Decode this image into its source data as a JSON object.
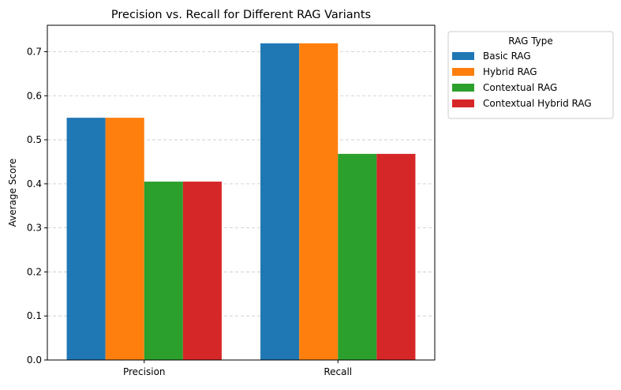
{
  "chart_data": {
    "type": "bar",
    "title": "Precision vs. Recall for Different RAG Variants",
    "xlabel": "",
    "ylabel": "Average Score",
    "categories": [
      "Precision",
      "Recall"
    ],
    "series": [
      {
        "name": "Basic RAG",
        "values": [
          0.55,
          0.719
        ],
        "color": "#1f77b4"
      },
      {
        "name": "Hybrid RAG",
        "values": [
          0.55,
          0.719
        ],
        "color": "#ff7f0e"
      },
      {
        "name": "Contextual RAG",
        "values": [
          0.405,
          0.468
        ],
        "color": "#2ca02c"
      },
      {
        "name": "Contextual Hybrid RAG",
        "values": [
          0.405,
          0.468
        ],
        "color": "#d62728"
      }
    ],
    "ylim": [
      0,
      0.76
    ],
    "yticks": [
      0.0,
      0.1,
      0.2,
      0.3,
      0.4,
      0.5,
      0.6,
      0.7
    ],
    "ytick_labels": [
      "0.0",
      "0.1",
      "0.2",
      "0.3",
      "0.4",
      "0.5",
      "0.6",
      "0.7"
    ],
    "grid": {
      "axis": "y",
      "style": "dashed",
      "color": "#c8c8c8"
    },
    "legend": {
      "title": "RAG Type",
      "placement": "outside-upper-right"
    }
  }
}
